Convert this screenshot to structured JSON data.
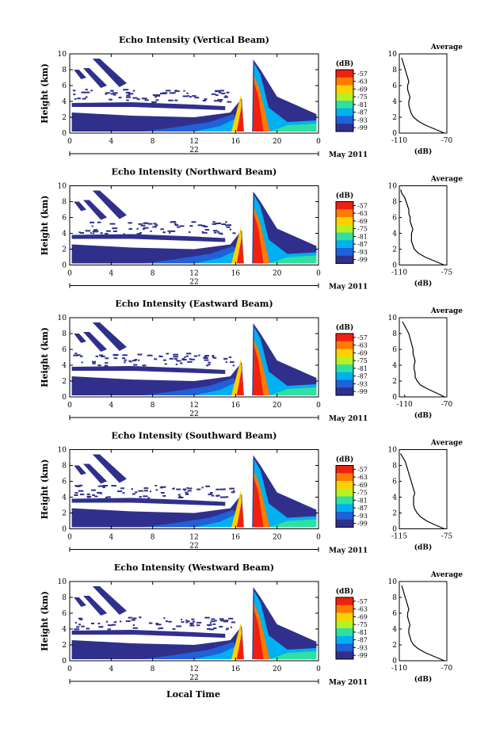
{
  "figure": {
    "bottom_xlabel": "Local Time",
    "colorbar_unit_label": "(dB)",
    "colorbar_ticks": [
      "-57",
      "-63",
      "-69",
      "-75",
      "-81",
      "-87",
      "-93",
      "-99"
    ],
    "colorbar_colors": [
      "#f02010",
      "#ff7a00",
      "#ffd000",
      "#b8f020",
      "#30e0a0",
      "#00b0f0",
      "#2060d8",
      "#30308c"
    ],
    "ylabel": "Height (km)",
    "date_label": "May 2011",
    "avg_xlabel": "(dB)"
  },
  "chart_data": [
    {
      "type": "heatmap",
      "title": "Echo Intensity (Vertical Beam)",
      "ylabel": "Height (km)",
      "x_ticks": [
        "0",
        "4",
        "8",
        "12",
        "16",
        "20",
        "0"
      ],
      "day_label": "22",
      "date_label": "May 2011",
      "xlim": [
        0,
        24
      ],
      "ylim": [
        0,
        10
      ],
      "y_ticks": [
        "0",
        "2",
        "4",
        "6",
        "8",
        "10"
      ],
      "color_range_db": [
        -99,
        -57
      ],
      "average_profile": {
        "title": "Average",
        "xlabel": "(dB)",
        "x_ticks": [
          "-110",
          "-70"
        ],
        "xlim": [
          -110,
          -70
        ],
        "heights": [
          0,
          0.5,
          1,
          1.5,
          2,
          2.5,
          3,
          3.5,
          4,
          4.5,
          5,
          5.5,
          6,
          6.5,
          7,
          7.5,
          8,
          8.5,
          9,
          9.5
        ],
        "values": [
          -72,
          -80,
          -88,
          -94,
          -98,
          -100,
          -101,
          -102,
          -102,
          -101,
          -102,
          -103,
          -103,
          -102,
          -103,
          -104,
          -105,
          -106,
          -107,
          -108
        ]
      }
    },
    {
      "type": "heatmap",
      "title": "Echo Intensity (Northward Beam)",
      "ylabel": "Height (km)",
      "x_ticks": [
        "0",
        "4",
        "8",
        "12",
        "16",
        "20",
        "0"
      ],
      "day_label": "22",
      "date_label": "May 2011",
      "xlim": [
        0,
        24
      ],
      "ylim": [
        0,
        10
      ],
      "y_ticks": [
        "0",
        "2",
        "4",
        "6",
        "8",
        "10"
      ],
      "color_range_db": [
        -99,
        -57
      ],
      "average_profile": {
        "title": "Average",
        "xlabel": "(dB)",
        "x_ticks": [
          "-110",
          "-75"
        ],
        "xlim": [
          -110,
          -75
        ],
        "heights": [
          0,
          0.5,
          1,
          1.5,
          2,
          2.5,
          3,
          3.5,
          4,
          4.5,
          5,
          5.5,
          6,
          6.5,
          7,
          7.5,
          8,
          8.5,
          9,
          9.5
        ],
        "values": [
          -77,
          -84,
          -91,
          -96,
          -99,
          -100,
          -101,
          -101,
          -101,
          -100,
          -101,
          -102,
          -102,
          -103,
          -103,
          -104,
          -105,
          -106,
          -108,
          -109
        ]
      }
    },
    {
      "type": "heatmap",
      "title": "Echo Intensity (Eastward Beam)",
      "ylabel": "Height (km)",
      "x_ticks": [
        "0",
        "4",
        "8",
        "12",
        "16",
        "20",
        "0"
      ],
      "day_label": "22",
      "date_label": "May 2011",
      "xlim": [
        0,
        24
      ],
      "ylim": [
        0,
        10
      ],
      "y_ticks": [
        "0",
        "2",
        "4",
        "6",
        "8",
        "10"
      ],
      "color_range_db": [
        -99,
        -57
      ],
      "average_profile": {
        "title": "Average",
        "xlabel": "(dB)",
        "x_ticks": [
          "-110",
          "-70"
        ],
        "xlim": [
          -115,
          -70
        ],
        "heights": [
          0,
          0.5,
          1,
          1.5,
          2,
          2.5,
          3,
          3.5,
          4,
          4.5,
          5,
          5.5,
          6,
          6.5,
          7,
          7.5,
          8,
          8.5,
          9,
          9.5
        ],
        "values": [
          -72,
          -80,
          -88,
          -95,
          -98,
          -100,
          -100,
          -101,
          -101,
          -100,
          -101,
          -102,
          -102,
          -103,
          -104,
          -105,
          -106,
          -108,
          -110,
          -112
        ]
      }
    },
    {
      "type": "heatmap",
      "title": "Echo Intensity (Southward Beam)",
      "ylabel": "Height (km)",
      "x_ticks": [
        "0",
        "4",
        "8",
        "12",
        "16",
        "20",
        "0"
      ],
      "day_label": "22",
      "date_label": "May 2011",
      "xlim": [
        0,
        24
      ],
      "ylim": [
        0,
        10
      ],
      "y_ticks": [
        "0",
        "2",
        "4",
        "6",
        "8",
        "10"
      ],
      "color_range_db": [
        -99,
        -57
      ],
      "average_profile": {
        "title": "Average",
        "xlabel": "(dB)",
        "x_ticks": [
          "-115",
          "-75"
        ],
        "xlim": [
          -115,
          -75
        ],
        "heights": [
          0,
          0.5,
          1,
          1.5,
          2,
          2.5,
          3,
          3.5,
          4,
          4.5,
          5,
          5.5,
          6,
          6.5,
          7,
          7.5,
          8,
          8.5,
          9,
          9.5
        ],
        "values": [
          -77,
          -85,
          -92,
          -97,
          -100,
          -102,
          -103,
          -103,
          -103,
          -102,
          -103,
          -104,
          -105,
          -106,
          -107,
          -108,
          -109,
          -110,
          -112,
          -114
        ]
      }
    },
    {
      "type": "heatmap",
      "title": "Echo Intensity (Westward Beam)",
      "ylabel": "Height (km)",
      "x_ticks": [
        "0",
        "4",
        "8",
        "12",
        "16",
        "20",
        "0"
      ],
      "day_label": "22",
      "date_label": "May 2011",
      "xlim": [
        0,
        24
      ],
      "ylim": [
        0,
        10
      ],
      "y_ticks": [
        "0",
        "2",
        "4",
        "6",
        "8",
        "10"
      ],
      "color_range_db": [
        -99,
        -57
      ],
      "average_profile": {
        "title": "Average",
        "xlabel": "(dB)",
        "x_ticks": [
          "-110",
          "-70"
        ],
        "xlim": [
          -110,
          -70
        ],
        "heights": [
          0,
          0.5,
          1,
          1.5,
          2,
          2.5,
          3,
          3.5,
          4,
          4.5,
          5,
          5.5,
          6,
          6.5,
          7,
          7.5,
          8,
          8.5,
          9,
          9.5
        ],
        "values": [
          -72,
          -80,
          -88,
          -94,
          -98,
          -100,
          -101,
          -102,
          -102,
          -101,
          -102,
          -103,
          -103,
          -102,
          -103,
          -104,
          -105,
          -106,
          -107,
          -108
        ]
      }
    }
  ]
}
